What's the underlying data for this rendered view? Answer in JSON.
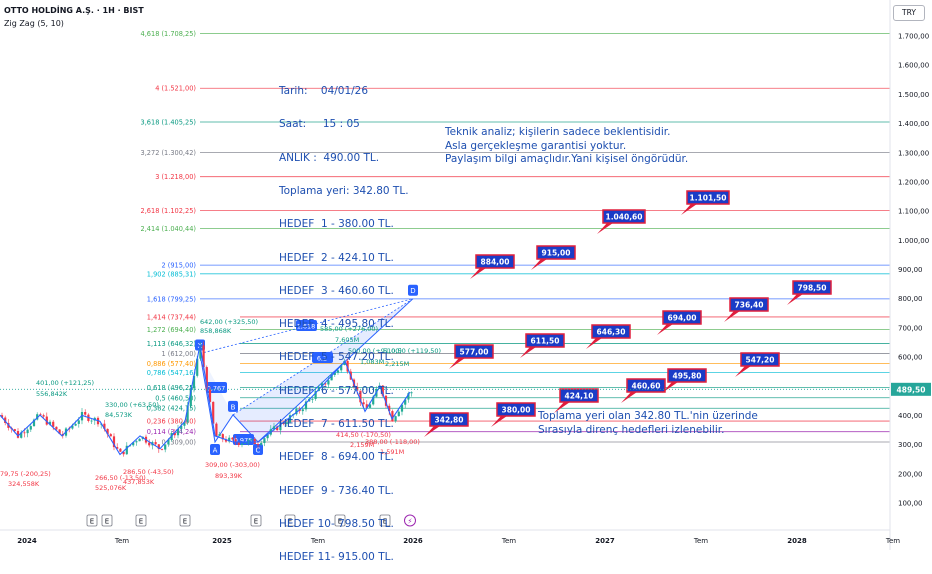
{
  "header": {
    "title": "OTTO HOLDİNG A.Ş. · 1H · BIST",
    "indicator": "Zig Zag (5, 10)",
    "currency": "TRY"
  },
  "colors": {
    "target_box_bg": "#1a3cc7",
    "target_box_border": "#e01e3c",
    "note_text": "#1e4fb0",
    "candle_up": "#22ab94",
    "candle_down": "#f23645",
    "zigzag": "#2962ff",
    "price_badge": "#26a69a"
  },
  "info": {
    "lines": [
      "Tarih:    04/01/26",
      "Saat:     15 : 05",
      "ANLIK :  490.00 TL.",
      "Toplama yeri: 342.80 TL.",
      "HEDEF  1 - 380.00 TL.",
      "HEDEF  2 - 424.10 TL.",
      "HEDEF  3 - 460.60 TL.",
      "HEDEF  4 - 495.80 TL.",
      "HEDEF  5 - 547.20 TL.",
      "HEDEF  6 - 577.00 TL.",
      "HEDEF  7 - 611.50 TL.",
      "HEDEF  8 - 694.00 TL.",
      "HEDEF  9 - 736.40 TL.",
      "HEDEF 10- 798.50 TL.",
      "HEDEF 11- 915.00 TL."
    ]
  },
  "notes": {
    "top": "Teknik analiz; kişilerin sadece beklentisidir.\nAsla gerçekleşme garantisi yoktur.\nPaylaşım bilgi amaçlıdır.Yani kişisel öngörüdür.",
    "bottom": "Toplama yeri olan 342.80 TL.'nin üzerinde\nSırasıyla direnç hedefleri izlenebilir."
  },
  "chart_data": {
    "type": "candlestick",
    "y_axis": {
      "range": [
        50,
        1780
      ],
      "ticks": [
        "1.700,00",
        "1.600,00",
        "1.500,00",
        "1.400,00",
        "1.300,00",
        "1.200,00",
        "1.100,00",
        "1.000,00",
        "900,00",
        "800,00",
        "700,00",
        "600,00",
        "500,00",
        "400,00",
        "300,00",
        "200,00",
        "100,00"
      ],
      "tick_values": [
        1700,
        1600,
        1500,
        1400,
        1300,
        1200,
        1100,
        1000,
        900,
        800,
        700,
        600,
        500,
        400,
        300,
        200,
        100
      ]
    },
    "x_axis": {
      "labels": [
        "2024",
        "Tem",
        "2025",
        "Tem",
        "2026",
        "Tem",
        "2027",
        "Tem",
        "2028",
        "Tem"
      ],
      "bold": [
        true,
        false,
        true,
        false,
        true,
        false,
        true,
        false,
        true,
        false
      ]
    },
    "last_price": "489,50",
    "last_value": 489.5,
    "fib_levels": [
      {
        "label": "4,618 (1.708,25)",
        "value": 1708.25,
        "color": "#4caf50"
      },
      {
        "label": "4 (1.521,00)",
        "value": 1521,
        "color": "#f23645"
      },
      {
        "label": "3,618 (1.405,25)",
        "value": 1405.25,
        "color": "#089981"
      },
      {
        "label": "3,272 (1.300,42)",
        "value": 1300.42,
        "color": "#787b86"
      },
      {
        "label": "3 (1.218,00)",
        "value": 1218,
        "color": "#f23645"
      },
      {
        "label": "2,618 (1.102,25)",
        "value": 1102.25,
        "color": "#f23645"
      },
      {
        "label": "2,414 (1.040,44)",
        "value": 1040.44,
        "color": "#4caf50"
      },
      {
        "label": "2 (915,00)",
        "value": 915,
        "color": "#2962ff"
      },
      {
        "label": "1,902 (885,31)",
        "value": 885.31,
        "color": "#00bcd4"
      },
      {
        "label": "1,618 (799,25)",
        "value": 799.25,
        "color": "#2962ff"
      },
      {
        "label": "1,414 (737,44)",
        "value": 737.44,
        "color": "#f23645"
      },
      {
        "label": "1,272 (694,40)",
        "value": 694.4,
        "color": "#4caf50"
      },
      {
        "label": "1,113 (646,32)",
        "value": 646.32,
        "color": "#089981"
      },
      {
        "label": "1 (612,00)",
        "value": 612,
        "color": "#787b86"
      },
      {
        "label": "0,886 (577,40)",
        "value": 577.4,
        "color": "#ff9800"
      },
      {
        "label": "0,786 (547,16)",
        "value": 547.16,
        "color": "#00bcd4"
      },
      {
        "label": "0,618 (496,25)",
        "value": 496.25,
        "color": "#089981"
      },
      {
        "label": "0,5 (460,50)",
        "value": 460.5,
        "color": "#089981"
      },
      {
        "label": "0,382 (424,75)",
        "value": 424.75,
        "color": "#089981"
      },
      {
        "label": "0,236 (380,80)",
        "value": 380.8,
        "color": "#f23645"
      },
      {
        "label": "0,114 (344,24)",
        "value": 344.24,
        "color": "#9c27b0"
      },
      {
        "label": "0 (309,00)",
        "value": 309,
        "color": "#787b86"
      }
    ],
    "targets": [
      {
        "label": "342,80",
        "value": 342.8
      },
      {
        "label": "380,00",
        "value": 380
      },
      {
        "label": "424,10",
        "value": 424.1
      },
      {
        "label": "460,60",
        "value": 460.6
      },
      {
        "label": "495,80",
        "value": 495.8
      },
      {
        "label": "547,20",
        "value": 547.2
      },
      {
        "label": "577,00",
        "value": 577
      },
      {
        "label": "611,50",
        "value": 611.5
      },
      {
        "label": "646,30",
        "value": 646.3
      },
      {
        "label": "694,00",
        "value": 694
      },
      {
        "label": "736,40",
        "value": 736.4
      },
      {
        "label": "798,50",
        "value": 798.5
      },
      {
        "label": "884,00",
        "value": 884
      },
      {
        "label": "915,00",
        "value": 915
      },
      {
        "label": "1.040,60",
        "value": 1040.6
      },
      {
        "label": "1.101,50",
        "value": 1101.5
      }
    ],
    "pattern_points": [
      {
        "label": "X",
        "value": 612
      },
      {
        "label": "A",
        "value": 309
      },
      {
        "label": "B",
        "value": 402
      },
      {
        "label": "C",
        "value": 309
      },
      {
        "label": "D",
        "value": 800
      }
    ],
    "pattern_ratios": [
      "0,767",
      "0,975",
      "1,618",
      "6,2"
    ],
    "zigzag_labels": [
      "401,00 (+121,25)",
      "556,842K",
      "330,00 (+63,50)",
      "84,573K",
      "79,75 (-200,25)",
      "324,558K",
      "266,50 (-13,50)",
      "525,076K",
      "286,50 (-43,50)",
      "437,853K",
      "642,00 (+325,50)",
      "858,868K",
      "309,00 (-303,00)",
      "893,39K",
      "585,00 (+276,00)",
      "7,605M",
      "500,00 (+91,00)",
      "1,083M",
      "510,50 (+119,50)",
      "2,215M",
      "414,50 (-170,50)",
      "2,159M",
      "388,00 (-118,00)",
      "1,591M"
    ],
    "event_markers": [
      "E",
      "E",
      "E",
      "E",
      "E",
      "E",
      "E",
      "E",
      "E"
    ]
  }
}
